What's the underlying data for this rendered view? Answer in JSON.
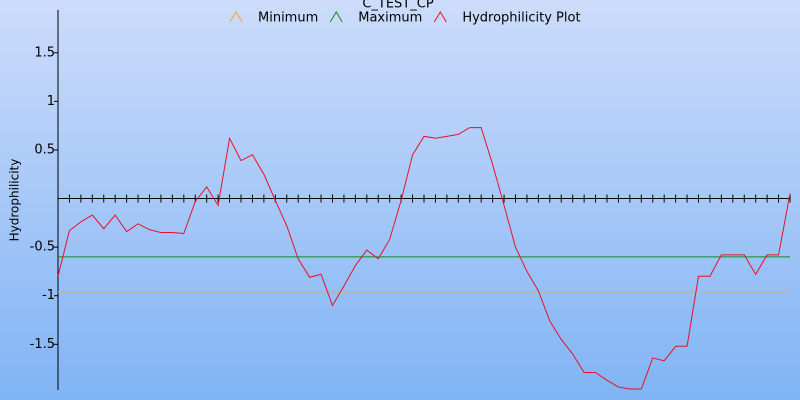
{
  "chart_data": {
    "type": "line",
    "title": "C_TEST_CP",
    "y_label": "Hydrophilicity",
    "categories": [
      null,
      null,
      null,
      null,
      null,
      null,
      null,
      null,
      null,
      null,
      null,
      null,
      null,
      null,
      null,
      null,
      null,
      null,
      null,
      null,
      null,
      null,
      null,
      null,
      null,
      null,
      null,
      null,
      null,
      null,
      null,
      null,
      null,
      null,
      null,
      null,
      null,
      null,
      null,
      null,
      null,
      null,
      null,
      null,
      null,
      null,
      null,
      null,
      null,
      null,
      null,
      null,
      null,
      null,
      null,
      null,
      null,
      null,
      null,
      null,
      null,
      null,
      null,
      null,
      null
    ],
    "series": [
      {
        "name": "Minimum",
        "color": "#f0a840",
        "values": [
          -0.96,
          -0.96,
          -0.96,
          -0.96,
          -0.96,
          -0.96,
          -0.96,
          -0.96,
          -0.96,
          -0.96,
          -0.96,
          -0.96,
          -0.96,
          -0.96,
          -0.96,
          -0.96,
          -0.96,
          -0.96,
          -0.96,
          -0.96,
          -0.96,
          -0.96,
          -0.96,
          -0.96,
          -0.96,
          -0.96,
          -0.96,
          -0.96,
          -0.96,
          -0.96,
          -0.96,
          -0.96,
          -0.96,
          -0.96,
          -0.96,
          -0.96,
          -0.96,
          -0.96,
          -0.96,
          -0.96,
          -0.96,
          -0.96,
          -0.96,
          -0.96,
          -0.96,
          -0.96,
          -0.96,
          -0.96,
          -0.96,
          -0.96,
          -0.96,
          -0.96,
          -0.96,
          -0.96,
          -0.96,
          -0.96,
          -0.96,
          -0.96,
          -0.96,
          -0.96,
          -0.96,
          -0.96,
          -0.96,
          -0.96,
          -0.96
        ]
      },
      {
        "name": "Maximum",
        "color": "#108a20",
        "values": [
          -0.6,
          -0.6,
          -0.6,
          -0.6,
          -0.6,
          -0.6,
          -0.6,
          -0.6,
          -0.6,
          -0.6,
          -0.6,
          -0.6,
          -0.6,
          -0.6,
          -0.6,
          -0.6,
          -0.6,
          -0.6,
          -0.6,
          -0.6,
          -0.6,
          -0.6,
          -0.6,
          -0.6,
          -0.6,
          -0.6,
          -0.6,
          -0.6,
          -0.6,
          -0.6,
          -0.6,
          -0.6,
          -0.6,
          -0.6,
          -0.6,
          -0.6,
          -0.6,
          -0.6,
          -0.6,
          -0.6,
          -0.6,
          -0.6,
          -0.6,
          -0.6,
          -0.6,
          -0.6,
          -0.6,
          -0.6,
          -0.6,
          -0.6,
          -0.6,
          -0.6,
          -0.6,
          -0.6,
          -0.6,
          -0.6,
          -0.6,
          -0.6,
          -0.6,
          -0.6,
          -0.6,
          -0.6,
          -0.6,
          -0.6,
          -0.6
        ]
      },
      {
        "name": "Hydrophilicity Plot",
        "color": "#e8102a",
        "values": [
          -0.8,
          -0.33,
          -0.24,
          -0.17,
          -0.31,
          -0.17,
          -0.34,
          -0.26,
          -0.32,
          -0.35,
          -0.35,
          -0.36,
          -0.03,
          0.12,
          -0.07,
          0.62,
          0.39,
          0.45,
          0.25,
          -0.02,
          -0.28,
          -0.62,
          -0.81,
          -0.78,
          -1.1,
          -0.9,
          -0.69,
          -0.53,
          -0.62,
          -0.42,
          -0.02,
          0.45,
          0.64,
          0.62,
          0.64,
          0.66,
          0.73,
          0.73,
          0.35,
          -0.07,
          -0.5,
          -0.75,
          -0.95,
          -1.26,
          -1.45,
          -1.6,
          -1.79,
          -1.79,
          -1.87,
          -1.94,
          -1.96,
          -1.96,
          -1.64,
          -1.67,
          -1.52,
          -1.52,
          -0.8,
          -0.8,
          -0.58,
          -0.58,
          -0.58,
          -0.78,
          -0.58,
          -0.58,
          0.05
        ]
      }
    ],
    "ylim": [
      -1.97,
      1.94
    ],
    "yticks": [
      {
        "value": -1.5,
        "label": "-1.5"
      },
      {
        "value": -1,
        "label": "-1"
      },
      {
        "value": -0.5,
        "label": "-0.5"
      },
      {
        "value": 0.5,
        "label": "0.5"
      },
      {
        "value": 1,
        "label": "1"
      },
      {
        "value": 1.5,
        "label": "1.5"
      }
    ]
  }
}
